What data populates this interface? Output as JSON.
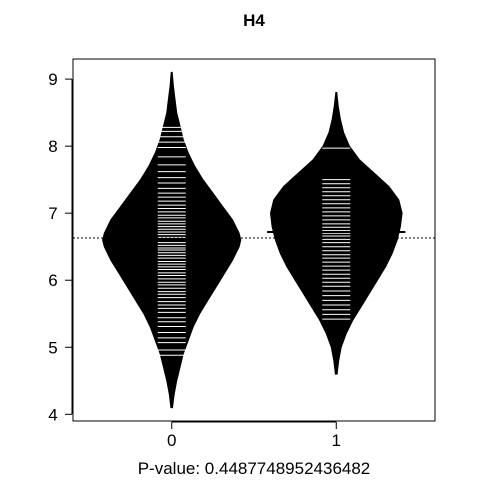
{
  "chart_data": {
    "type": "beanplot",
    "title": "H4",
    "xlabel": "P-value: 0.4487748952436482",
    "ylabel": "",
    "ylim": [
      3.9,
      9.3
    ],
    "xlim": [
      -0.6,
      1.6
    ],
    "y_ticks": [
      4,
      5,
      6,
      7,
      8,
      9
    ],
    "x_ticks": [
      0,
      1
    ],
    "x_tick_labels": [
      "0",
      "1"
    ],
    "overall_mean": 6.63,
    "grid": false,
    "legend": "none",
    "colors": {
      "bean_fill": "#000000",
      "bean_lines": "#ffffff",
      "axes": "#000000",
      "background": "#ffffff"
    },
    "beans": [
      {
        "category": "0",
        "group_mean": 6.6,
        "density": [
          [
            4.1,
            0.005
          ],
          [
            4.3,
            0.015
          ],
          [
            4.5,
            0.03
          ],
          [
            4.7,
            0.05
          ],
          [
            4.9,
            0.07
          ],
          [
            5.1,
            0.1
          ],
          [
            5.3,
            0.13
          ],
          [
            5.5,
            0.17
          ],
          [
            5.7,
            0.22
          ],
          [
            5.9,
            0.27
          ],
          [
            6.1,
            0.32
          ],
          [
            6.3,
            0.37
          ],
          [
            6.5,
            0.41
          ],
          [
            6.6,
            0.42
          ],
          [
            6.7,
            0.41
          ],
          [
            6.9,
            0.37
          ],
          [
            7.1,
            0.31
          ],
          [
            7.3,
            0.25
          ],
          [
            7.5,
            0.19
          ],
          [
            7.7,
            0.14
          ],
          [
            7.9,
            0.1
          ],
          [
            8.1,
            0.07
          ],
          [
            8.3,
            0.05
          ],
          [
            8.5,
            0.03
          ],
          [
            8.7,
            0.02
          ],
          [
            8.9,
            0.01
          ],
          [
            9.1,
            0.003
          ]
        ],
        "observations": [
          4.88,
          4.96,
          5.07,
          5.14,
          5.22,
          5.31,
          5.38,
          5.44,
          5.52,
          5.58,
          5.63,
          5.68,
          5.74,
          5.79,
          5.83,
          5.88,
          5.93,
          5.97,
          6.02,
          6.07,
          6.11,
          6.16,
          6.2,
          6.24,
          6.28,
          6.33,
          6.37,
          6.41,
          6.45,
          6.48,
          6.52,
          6.56,
          6.6,
          6.64,
          6.68,
          6.72,
          6.76,
          6.8,
          6.84,
          6.88,
          6.93,
          6.97,
          7.02,
          7.07,
          7.12,
          7.18,
          7.24,
          7.3,
          7.37,
          7.45,
          7.53,
          7.62,
          7.72,
          7.84,
          7.98,
          8.06,
          8.14,
          8.22,
          8.28
        ]
      },
      {
        "category": "1",
        "group_mean": 6.72,
        "density": [
          [
            4.6,
            0.005
          ],
          [
            4.8,
            0.015
          ],
          [
            5.0,
            0.03
          ],
          [
            5.2,
            0.06
          ],
          [
            5.4,
            0.1
          ],
          [
            5.6,
            0.15
          ],
          [
            5.8,
            0.2
          ],
          [
            6.0,
            0.25
          ],
          [
            6.2,
            0.3
          ],
          [
            6.4,
            0.34
          ],
          [
            6.6,
            0.37
          ],
          [
            6.8,
            0.39
          ],
          [
            7.0,
            0.4
          ],
          [
            7.2,
            0.38
          ],
          [
            7.4,
            0.32
          ],
          [
            7.6,
            0.23
          ],
          [
            7.8,
            0.14
          ],
          [
            8.0,
            0.08
          ],
          [
            8.2,
            0.045
          ],
          [
            8.4,
            0.025
          ],
          [
            8.6,
            0.012
          ],
          [
            8.8,
            0.003
          ]
        ],
        "observations": [
          5.42,
          5.49,
          5.56,
          5.63,
          5.7,
          5.77,
          5.84,
          5.91,
          5.97,
          6.03,
          6.09,
          6.15,
          6.21,
          6.27,
          6.33,
          6.38,
          6.44,
          6.5,
          6.56,
          6.61,
          6.66,
          6.7,
          6.74,
          6.79,
          6.84,
          6.9,
          6.96,
          7.02,
          7.08,
          7.14,
          7.2,
          7.26,
          7.32,
          7.38,
          7.44,
          7.5,
          7.97
        ]
      }
    ]
  }
}
